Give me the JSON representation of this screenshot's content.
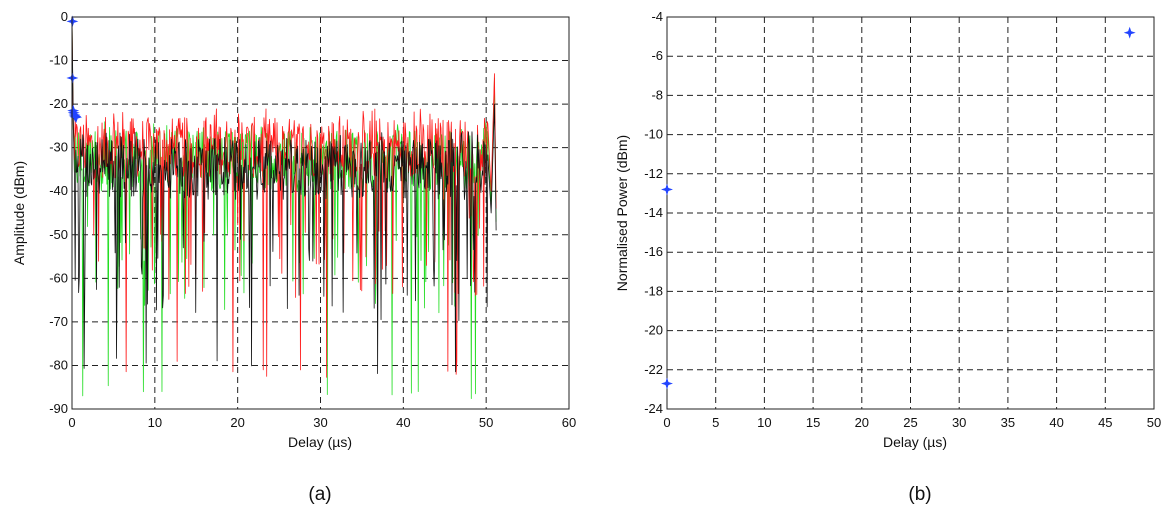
{
  "chart_data": [
    {
      "type": "line",
      "panel_label": "(a)",
      "xlabel": "Delay (µs)",
      "ylabel": "Amplitude (dBm)",
      "xlim": [
        0,
        60
      ],
      "ylim": [
        -90,
        0
      ],
      "xticks": [
        "0",
        "10",
        "20",
        "30",
        "40",
        "50",
        "60"
      ],
      "yticks": [
        "0",
        "-10",
        "-20",
        "-30",
        "-40",
        "-50",
        "-60",
        "-70",
        "-80",
        "-90"
      ],
      "grid": true,
      "series": [
        {
          "color": "#ff1a1a",
          "x_range": [
            0,
            51
          ],
          "y_start": 0,
          "floor_mean": -30,
          "peak_near_end": -13,
          "deepest_fade": -83
        },
        {
          "color": "#22dd22",
          "x_range": [
            0,
            51
          ],
          "y_start": 0,
          "floor_mean": -33,
          "peak_near_end": -14,
          "deepest_fade": -88
        },
        {
          "color": "#111111",
          "x_range": [
            0,
            51
          ],
          "y_start": 0,
          "floor_mean": -35,
          "peak_near_end": -20,
          "deepest_fade": -82
        }
      ],
      "markers": {
        "color": "#2244ff",
        "symbol": "star",
        "points": [
          {
            "x": 0.05,
            "y": -1
          },
          {
            "x": 0.05,
            "y": -14
          },
          {
            "x": 0.15,
            "y": -21.5
          },
          {
            "x": 0.2,
            "y": -22
          },
          {
            "x": 0.3,
            "y": -22.5
          },
          {
            "x": 0.4,
            "y": -22.8
          },
          {
            "x": 0.5,
            "y": -23
          }
        ]
      }
    },
    {
      "type": "scatter",
      "panel_label": "(b)",
      "xlabel": "Delay (µs)",
      "ylabel": "Normalised Power (dBm)",
      "xlim": [
        0,
        50
      ],
      "ylim": [
        -24,
        -4
      ],
      "xticks": [
        "0",
        "5",
        "10",
        "15",
        "20",
        "25",
        "30",
        "35",
        "40",
        "45",
        "50"
      ],
      "yticks": [
        "-4",
        "-6",
        "-8",
        "-10",
        "-12",
        "-14",
        "-16",
        "-18",
        "-20",
        "-22",
        "-24"
      ],
      "grid": true,
      "series": [
        {
          "color": "#2244ff",
          "symbol": "star",
          "points": [
            {
              "x": 0,
              "y": -12.8
            },
            {
              "x": 0,
              "y": -22.7
            },
            {
              "x": 47.5,
              "y": -4.8
            }
          ]
        }
      ]
    }
  ]
}
